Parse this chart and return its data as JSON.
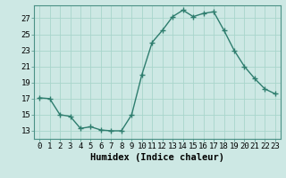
{
  "x": [
    0,
    1,
    2,
    3,
    4,
    5,
    6,
    7,
    8,
    9,
    10,
    11,
    12,
    13,
    14,
    15,
    16,
    17,
    18,
    19,
    20,
    21,
    22,
    23
  ],
  "y": [
    17.1,
    17.0,
    15.0,
    14.8,
    13.3,
    13.5,
    13.1,
    13.0,
    13.0,
    15.0,
    20.0,
    24.0,
    25.5,
    27.2,
    28.0,
    27.2,
    27.6,
    27.8,
    25.5,
    23.0,
    21.0,
    19.5,
    18.2,
    17.6
  ],
  "line_color": "#2e7d6e",
  "marker": "+",
  "marker_size": 4,
  "marker_linewidth": 1.0,
  "bg_color": "#cde8e4",
  "grid_color": "#a8d5cc",
  "xlabel": "Humidex (Indice chaleur)",
  "xlim": [
    -0.5,
    23.5
  ],
  "ylim": [
    12.0,
    28.6
  ],
  "yticks": [
    13,
    15,
    17,
    19,
    21,
    23,
    25,
    27
  ],
  "xticks": [
    0,
    1,
    2,
    3,
    4,
    5,
    6,
    7,
    8,
    9,
    10,
    11,
    12,
    13,
    14,
    15,
    16,
    17,
    18,
    19,
    20,
    21,
    22,
    23
  ],
  "xlabel_fontsize": 7.5,
  "tick_fontsize": 6.5,
  "line_width": 1.0,
  "spine_color": "#4a9085"
}
